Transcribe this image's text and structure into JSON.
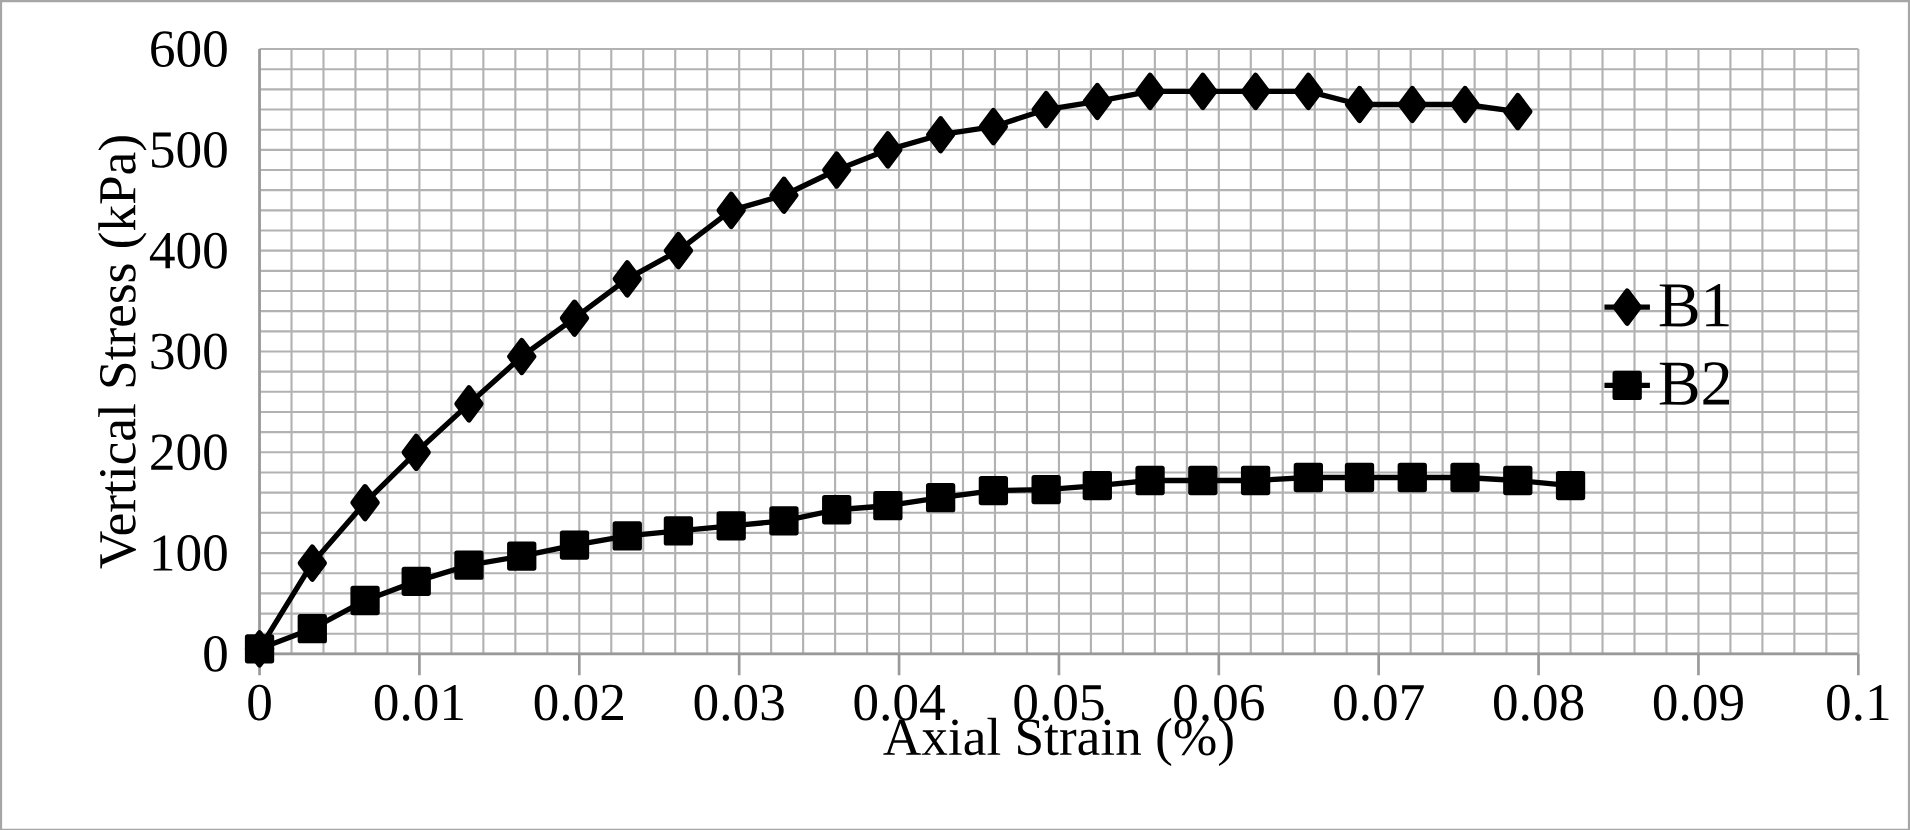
{
  "chart_data": {
    "type": "line",
    "xlabel": "Axial  Strain (%)",
    "ylabel": "Vertical  Stress (kPa)",
    "xlim": [
      0,
      0.1
    ],
    "ylim": [
      0,
      600
    ],
    "xticks": [
      0,
      0.01,
      0.02,
      0.03,
      0.04,
      0.05,
      0.06,
      0.07,
      0.08,
      0.09,
      0.1
    ],
    "yticks": [
      0,
      100,
      200,
      300,
      400,
      500,
      600
    ],
    "grid": true,
    "legend": "right",
    "series": [
      {
        "name": "B1",
        "color": "#000000",
        "marker": "diamond",
        "x": [
          0,
          0.0033,
          0.0066,
          0.0098,
          0.0131,
          0.0164,
          0.0197,
          0.023,
          0.0262,
          0.0295,
          0.0328,
          0.0361,
          0.0393,
          0.0426,
          0.0459,
          0.0492,
          0.0524,
          0.0557,
          0.059,
          0.0623,
          0.0656,
          0.0688,
          0.0721,
          0.0754,
          0.0787
        ],
        "values": [
          5,
          90,
          150,
          200,
          248,
          295,
          333,
          372,
          400,
          440,
          455,
          480,
          500,
          515,
          523,
          540,
          548,
          558,
          558,
          558,
          558,
          545,
          545,
          545,
          538
        ]
      },
      {
        "name": "B2",
        "color": "#000000",
        "marker": "square",
        "x": [
          0,
          0.0033,
          0.0066,
          0.0098,
          0.0131,
          0.0164,
          0.0197,
          0.023,
          0.0262,
          0.0295,
          0.0328,
          0.0361,
          0.0393,
          0.0426,
          0.0459,
          0.0492,
          0.0524,
          0.0557,
          0.059,
          0.0623,
          0.0656,
          0.0688,
          0.0721,
          0.0754,
          0.0787,
          0.082
        ],
        "values": [
          5,
          25,
          53,
          72,
          88,
          97,
          108,
          117,
          122,
          127,
          132,
          143,
          147,
          155,
          162,
          163,
          167,
          172,
          172,
          172,
          175,
          175,
          175,
          175,
          172,
          167
        ]
      }
    ]
  }
}
